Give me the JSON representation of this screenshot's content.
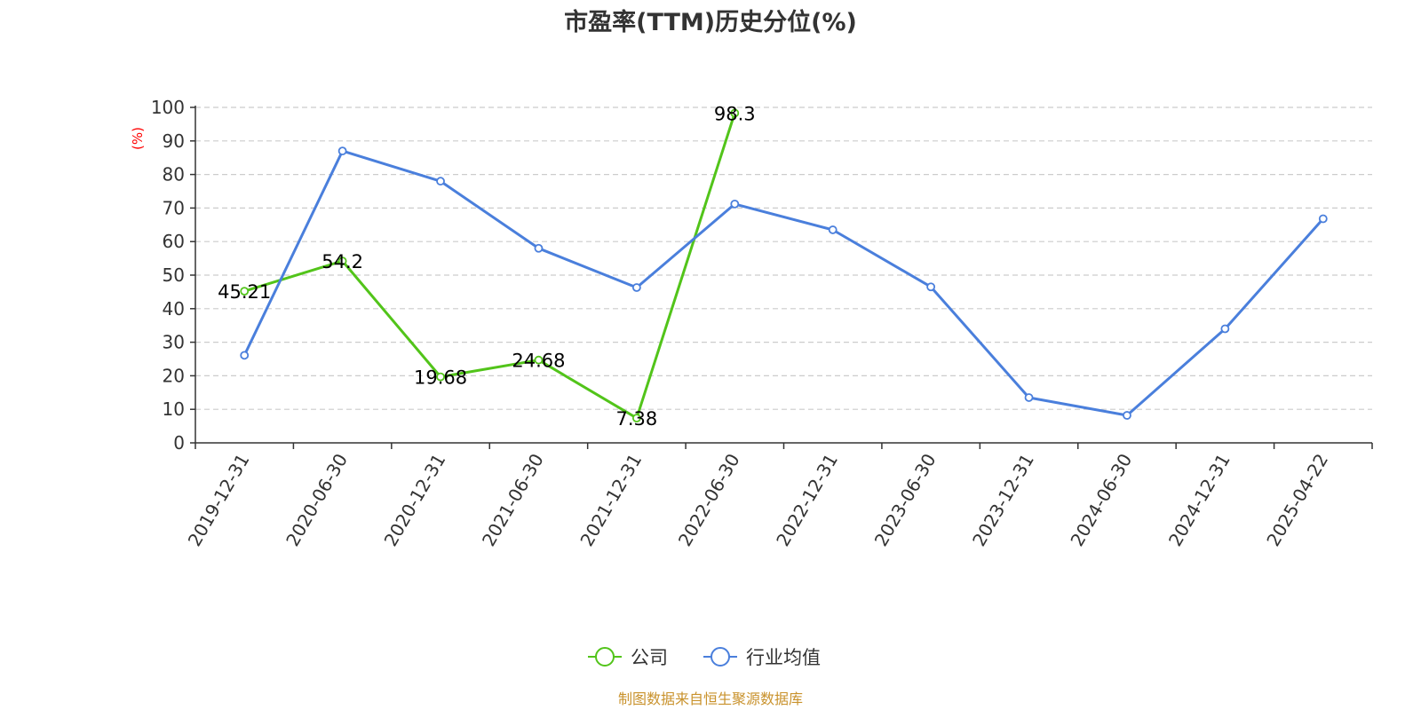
{
  "chart_data": {
    "type": "line",
    "title": "市盈率(TTM)历史分位(%)",
    "ylabel": "(%)",
    "xlabel": "",
    "ylim": [
      0,
      100
    ],
    "yticks": [
      0,
      10,
      20,
      30,
      40,
      50,
      60,
      70,
      80,
      90,
      100
    ],
    "grid": true,
    "legend_position": "bottom-center",
    "categories": [
      "2019-12-31",
      "2020-06-30",
      "2020-12-31",
      "2021-06-30",
      "2021-12-31",
      "2022-06-30",
      "2022-12-31",
      "2023-06-30",
      "2023-12-31",
      "2024-06-30",
      "2024-12-31",
      "2025-04-22"
    ],
    "series": [
      {
        "name": "公司",
        "color": "#52c41a",
        "values": [
          45.21,
          54.2,
          19.68,
          24.68,
          7.38,
          98.3,
          null,
          null,
          null,
          null,
          null,
          null
        ],
        "labels": [
          "45.21",
          "54.2",
          "19.68",
          "24.68",
          "7.38",
          "98.3",
          null,
          null,
          null,
          null,
          null,
          null
        ]
      },
      {
        "name": "行业均值",
        "color": "#4a7fdc",
        "values": [
          26.1,
          87.0,
          78.0,
          58.0,
          46.3,
          71.2,
          63.5,
          46.5,
          13.5,
          8.2,
          34.0,
          66.8
        ],
        "labels": null
      }
    ],
    "source": "制图数据来自恒生聚源数据库"
  }
}
